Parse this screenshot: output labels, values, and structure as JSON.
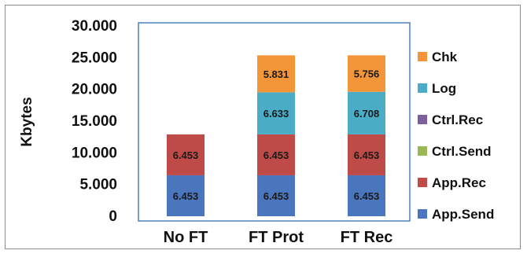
{
  "chart_data": {
    "type": "bar",
    "stacked": true,
    "title": "",
    "xlabel": "",
    "ylabel": "Kbytes",
    "ylim": [
      0,
      30000
    ],
    "yticks": [
      0,
      5000,
      10000,
      15000,
      20000,
      25000,
      30000
    ],
    "ytick_labels": [
      "0",
      "5.000",
      "10.000",
      "15.000",
      "20.000",
      "25.000",
      "30.000"
    ],
    "categories": [
      "No FT",
      "FT Prot",
      "FT Rec"
    ],
    "grid": false,
    "legend_position": "right",
    "series": [
      {
        "name": "App.Send",
        "color": "#4a76bd",
        "values": [
          6453,
          6453,
          6453
        ],
        "labels": [
          "6.453",
          "6.453",
          "6.453"
        ]
      },
      {
        "name": "App.Rec",
        "color": "#bf4b48",
        "values": [
          6453,
          6453,
          6453
        ],
        "labels": [
          "6.453",
          "6.453",
          "6.453"
        ]
      },
      {
        "name": "Ctrl.Send",
        "color": "#98b954",
        "values": [
          0,
          0,
          0
        ],
        "labels": [
          "",
          "",
          ""
        ]
      },
      {
        "name": "Ctrl.Rec",
        "color": "#7d5fa0",
        "values": [
          0,
          0,
          0
        ],
        "labels": [
          "",
          "",
          ""
        ]
      },
      {
        "name": "Log",
        "color": "#4bacc6",
        "values": [
          0,
          6633,
          6708
        ],
        "labels": [
          "",
          "6.633",
          "6.708"
        ]
      },
      {
        "name": "Chk",
        "color": "#f39639",
        "values": [
          0,
          5831,
          5756
        ],
        "labels": [
          "",
          "5.831",
          "5.756"
        ]
      }
    ],
    "legend_order": [
      "Chk",
      "Log",
      "Ctrl.Rec",
      "Ctrl.Send",
      "App.Rec",
      "App.Send"
    ]
  }
}
